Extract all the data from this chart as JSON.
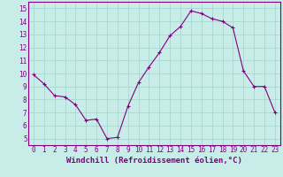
{
  "x": [
    0,
    1,
    2,
    3,
    4,
    5,
    6,
    7,
    8,
    9,
    10,
    11,
    12,
    13,
    14,
    15,
    16,
    17,
    18,
    19,
    20,
    21,
    22,
    23
  ],
  "y": [
    9.9,
    9.2,
    8.3,
    8.2,
    7.6,
    6.4,
    6.5,
    5.0,
    5.1,
    7.5,
    9.3,
    10.5,
    11.6,
    12.9,
    13.6,
    14.8,
    14.6,
    14.2,
    14.0,
    13.5,
    10.2,
    9.0,
    9.0,
    7.0
  ],
  "line_color": "#800080",
  "marker": "+",
  "marker_size": 3,
  "marker_linewidth": 0.8,
  "bg_color": "#c8ece8",
  "grid_color": "#a8d8d0",
  "xlim": [
    -0.5,
    23.5
  ],
  "ylim": [
    4.5,
    15.5
  ],
  "yticks": [
    5,
    6,
    7,
    8,
    9,
    10,
    11,
    12,
    13,
    14,
    15
  ],
  "xticks": [
    0,
    1,
    2,
    3,
    4,
    5,
    6,
    7,
    8,
    9,
    10,
    11,
    12,
    13,
    14,
    15,
    16,
    17,
    18,
    19,
    20,
    21,
    22,
    23
  ],
  "xlabel": "Windchill (Refroidissement éolien,°C)",
  "xlabel_fontsize": 6.5,
  "tick_fontsize": 5.5,
  "axis_color": "#800080",
  "spine_color": "#800080",
  "linewidth": 0.8
}
